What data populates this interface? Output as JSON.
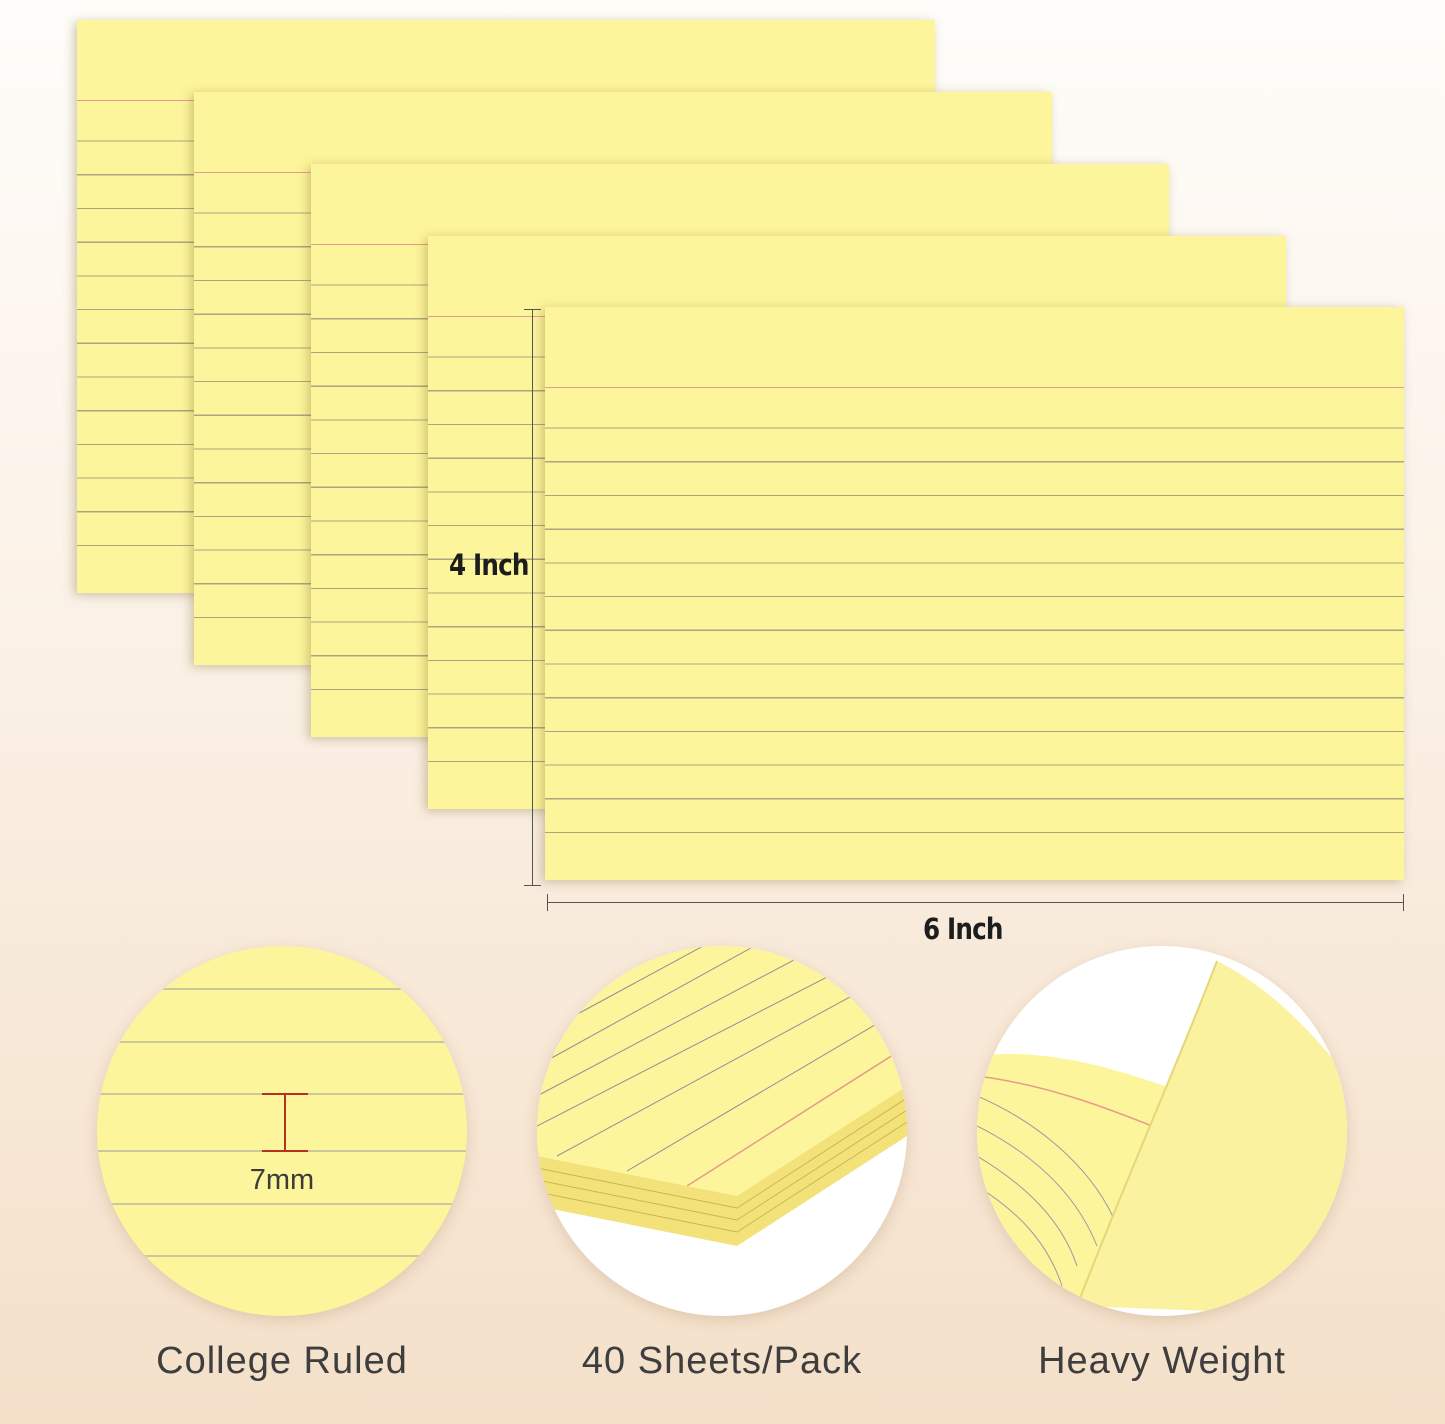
{
  "dimensions": {
    "height_label": "4 Inch",
    "width_label": "6 Inch"
  },
  "features": [
    {
      "label": "College Ruled",
      "annotation": "7mm"
    },
    {
      "label": "40 Sheets/Pack"
    },
    {
      "label": "Heavy Weight"
    }
  ],
  "colors": {
    "card": "#fdf59b",
    "rule_line": "#a9a680",
    "margin_line": "#e89a8a",
    "measure": "#b5321f"
  }
}
